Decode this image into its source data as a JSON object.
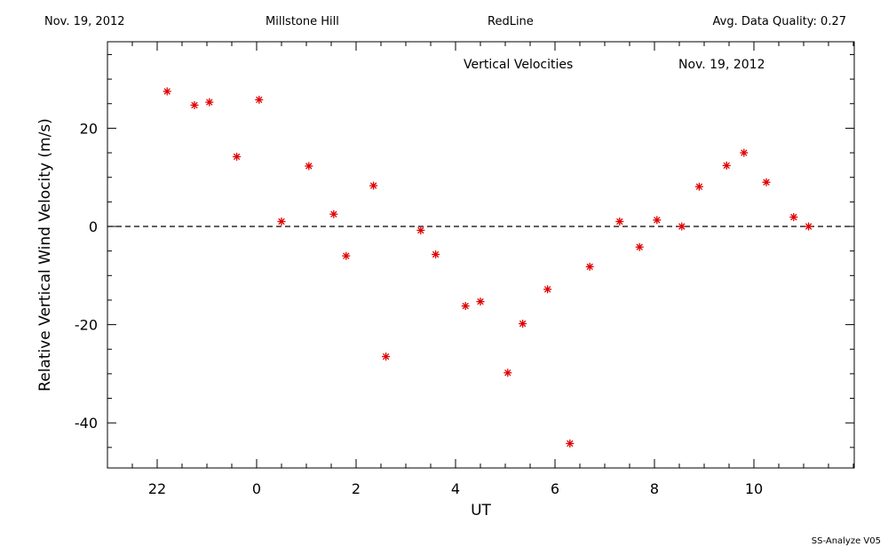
{
  "header": {
    "date": "Nov. 19, 2012",
    "site": "Millstone Hill",
    "instrument": "RedLine",
    "quality": "Avg. Data Quality: 0.27"
  },
  "footer": {
    "label": "SS-Analyze V05"
  },
  "chart_data": {
    "type": "scatter",
    "title": "Vertical Velocities",
    "subtitle": "Nov. 19, 2012",
    "xlabel": "UT",
    "ylabel": "Relative Vertical Wind Velocity (m/s)",
    "xlim": [
      -25,
      -12.25
    ],
    "ylim": [
      -49,
      38
    ],
    "x_ticks": [
      -26,
      -24,
      -22,
      -20,
      -18,
      -16,
      -14
    ],
    "x_tick_labels": [
      "22",
      "0",
      "2",
      "4",
      "6",
      "8",
      "10"
    ],
    "y_ticks": [
      -40,
      -20,
      0,
      20
    ],
    "y_tick_labels": [
      "-40",
      "-20",
      "0",
      "20"
    ],
    "marker": "asterisk",
    "marker_color": "#e00000",
    "zero_line": "dashed",
    "grid": false,
    "x": [
      -25.8,
      -25.25,
      -24.95,
      -24.4,
      -23.95,
      -23.5,
      -22.95,
      -22.45,
      -22.2,
      -21.65,
      -21.4,
      -20.7,
      -20.4,
      -19.8,
      -19.5,
      -18.95,
      -18.65,
      -18.15,
      -17.7,
      -17.3,
      -16.7,
      -16.3,
      -15.95,
      -15.45,
      -15.1,
      -14.55,
      -14.2,
      -13.75,
      -13.2,
      -12.9
    ],
    "y": [
      27.5,
      24.7,
      25.3,
      14.2,
      25.8,
      1.0,
      12.3,
      2.5,
      -6.0,
      8.3,
      -26.5,
      -0.8,
      -5.7,
      -16.2,
      -15.3,
      -29.8,
      -19.8,
      -12.8,
      -44.2,
      -8.2,
      1.0,
      -4.2,
      1.3,
      0.0,
      8.1,
      12.4,
      15.0,
      9.0,
      1.9,
      0.0
    ]
  },
  "colors": {
    "marker": "#e00000",
    "axes": "#000000"
  }
}
